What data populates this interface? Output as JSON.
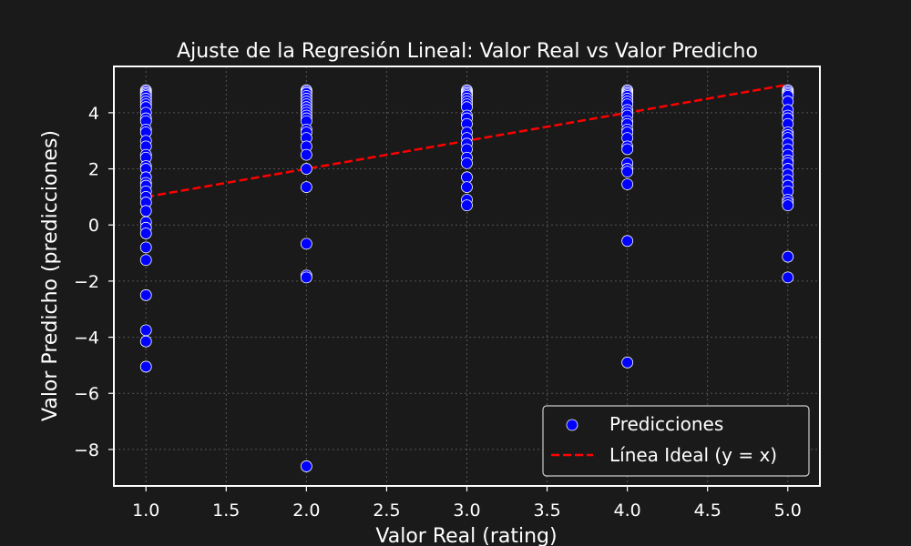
{
  "chart_data": {
    "type": "scatter",
    "title": "Ajuste de la Regresión Lineal: Valor Real vs Valor Predicho",
    "xlabel": "Valor Real (rating)",
    "ylabel": "Valor Predicho (predicciones)",
    "xlim": [
      0.8,
      5.2
    ],
    "ylim": [
      -9.3,
      5.65
    ],
    "xticks": [
      1.0,
      1.5,
      2.0,
      2.5,
      3.0,
      3.5,
      4.0,
      4.5,
      5.0
    ],
    "xtick_labels": [
      "1.0",
      "1.5",
      "2.0",
      "2.5",
      "3.0",
      "3.5",
      "4.0",
      "4.5",
      "5.0"
    ],
    "yticks": [
      -8,
      -6,
      -4,
      -2,
      0,
      2,
      4
    ],
    "ytick_labels": [
      "−8",
      "−6",
      "−4",
      "−2",
      "0",
      "2",
      "4"
    ],
    "grid": true,
    "legend_position": "bottom-right",
    "colors": {
      "background": "#1a1a1a",
      "points": "#0000ff",
      "point_edge": "#ffffff",
      "ideal_line": "#ff0000",
      "text": "#ffffff",
      "grid": "#555555"
    },
    "series": [
      {
        "name": "Predicciones",
        "kind": "scatter",
        "points": [
          [
            1,
            4.8
          ],
          [
            1,
            4.75
          ],
          [
            1,
            4.7
          ],
          [
            1,
            4.65
          ],
          [
            1,
            4.6
          ],
          [
            1,
            4.5
          ],
          [
            1,
            4.4
          ],
          [
            1,
            4.3
          ],
          [
            1,
            4.2
          ],
          [
            1,
            4.0
          ],
          [
            1,
            3.8
          ],
          [
            1,
            3.7
          ],
          [
            1,
            3.4
          ],
          [
            1,
            3.3
          ],
          [
            1,
            3.0
          ],
          [
            1,
            2.8
          ],
          [
            1,
            2.5
          ],
          [
            1,
            2.4
          ],
          [
            1,
            2.1
          ],
          [
            1,
            2.0
          ],
          [
            1,
            1.7
          ],
          [
            1,
            1.5
          ],
          [
            1,
            1.4
          ],
          [
            1,
            1.2
          ],
          [
            1,
            1.0
          ],
          [
            1,
            0.8
          ],
          [
            1,
            0.5
          ],
          [
            1,
            0.1
          ],
          [
            1,
            -0.1
          ],
          [
            1,
            -0.3
          ],
          [
            1,
            -0.8
          ],
          [
            1,
            -1.25
          ],
          [
            1,
            -2.5
          ],
          [
            1,
            -3.75
          ],
          [
            1,
            -4.15
          ],
          [
            1,
            -5.05
          ],
          [
            2,
            4.8
          ],
          [
            2,
            4.75
          ],
          [
            2,
            4.7
          ],
          [
            2,
            4.6
          ],
          [
            2,
            4.5
          ],
          [
            2,
            4.4
          ],
          [
            2,
            4.3
          ],
          [
            2,
            4.2
          ],
          [
            2,
            4.1
          ],
          [
            2,
            4.0
          ],
          [
            2,
            3.9
          ],
          [
            2,
            3.8
          ],
          [
            2,
            3.7
          ],
          [
            2,
            3.4
          ],
          [
            2,
            3.3
          ],
          [
            2,
            3.1
          ],
          [
            2,
            2.8
          ],
          [
            2,
            2.5
          ],
          [
            2,
            2.0
          ],
          [
            2,
            1.35
          ],
          [
            2,
            -0.67
          ],
          [
            2,
            -1.8
          ],
          [
            2,
            -1.87
          ],
          [
            2,
            -8.6
          ],
          [
            3,
            4.8
          ],
          [
            3,
            4.75
          ],
          [
            3,
            4.7
          ],
          [
            3,
            4.65
          ],
          [
            3,
            4.6
          ],
          [
            3,
            4.5
          ],
          [
            3,
            4.4
          ],
          [
            3,
            4.3
          ],
          [
            3,
            4.2
          ],
          [
            3,
            3.9
          ],
          [
            3,
            3.8
          ],
          [
            3,
            3.6
          ],
          [
            3,
            3.3
          ],
          [
            3,
            3.1
          ],
          [
            3,
            2.9
          ],
          [
            3,
            2.7
          ],
          [
            3,
            2.4
          ],
          [
            3,
            2.2
          ],
          [
            3,
            1.7
          ],
          [
            3,
            1.35
          ],
          [
            3,
            0.9
          ],
          [
            3,
            0.7
          ],
          [
            4,
            4.8
          ],
          [
            4,
            4.75
          ],
          [
            4,
            4.7
          ],
          [
            4,
            4.65
          ],
          [
            4,
            4.6
          ],
          [
            4,
            4.5
          ],
          [
            4,
            4.4
          ],
          [
            4,
            4.3
          ],
          [
            4,
            4.1
          ],
          [
            4,
            4.0
          ],
          [
            4,
            3.9
          ],
          [
            4,
            3.7
          ],
          [
            4,
            3.6
          ],
          [
            4,
            3.4
          ],
          [
            4,
            3.3
          ],
          [
            4,
            3.1
          ],
          [
            4,
            2.8
          ],
          [
            4,
            2.7
          ],
          [
            4,
            2.2
          ],
          [
            4,
            2.0
          ],
          [
            4,
            1.9
          ],
          [
            4,
            1.45
          ],
          [
            4,
            -0.57
          ],
          [
            4,
            -4.9
          ],
          [
            5,
            4.8
          ],
          [
            5,
            4.75
          ],
          [
            5,
            4.7
          ],
          [
            5,
            4.65
          ],
          [
            5,
            4.6
          ],
          [
            5,
            4.4
          ],
          [
            5,
            4.1
          ],
          [
            5,
            3.9
          ],
          [
            5,
            3.8
          ],
          [
            5,
            3.6
          ],
          [
            5,
            3.3
          ],
          [
            5,
            3.2
          ],
          [
            5,
            3.1
          ],
          [
            5,
            2.9
          ],
          [
            5,
            2.7
          ],
          [
            5,
            2.5
          ],
          [
            5,
            2.3
          ],
          [
            5,
            2.2
          ],
          [
            5,
            2.0
          ],
          [
            5,
            1.8
          ],
          [
            5,
            1.6
          ],
          [
            5,
            1.4
          ],
          [
            5,
            1.2
          ],
          [
            5,
            0.9
          ],
          [
            5,
            0.8
          ],
          [
            5,
            0.7
          ],
          [
            5,
            -1.13
          ],
          [
            5,
            -1.87
          ]
        ]
      },
      {
        "name": "Línea Ideal (y = x)",
        "kind": "line",
        "style": "dashed",
        "points": [
          [
            1,
            1
          ],
          [
            5,
            5
          ]
        ]
      }
    ]
  }
}
